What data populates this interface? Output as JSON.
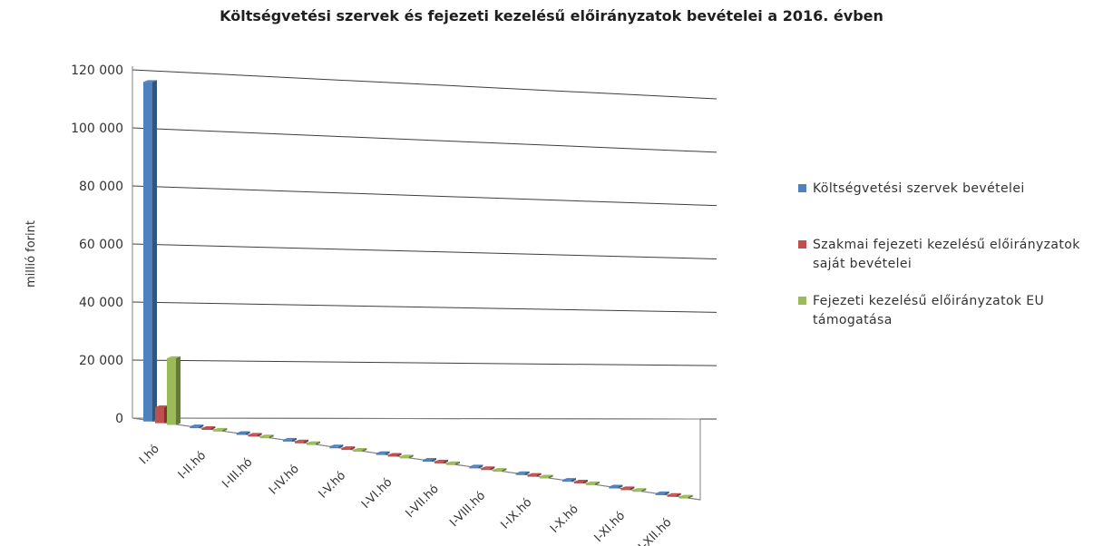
{
  "chart_data": {
    "type": "bar",
    "title": "Költségvetési szervek és fejezeti kezelésű előirányzatok bevételei a 2016. évben",
    "ylabel": "millió forint",
    "xlabel": "",
    "ylim": [
      0,
      120000
    ],
    "yticks": [
      "0",
      "20 000",
      "40 000",
      "60 000",
      "80 000",
      "100 000",
      "120 000"
    ],
    "ytick_values": [
      0,
      20000,
      40000,
      60000,
      80000,
      100000,
      120000
    ],
    "grid": true,
    "legend_position": "right",
    "categories": [
      "I.hó",
      "I-II.hó",
      "I-III.hó",
      "I-IV.hó",
      "I-V.hó",
      "I-VI.hó",
      "I-VII.hó",
      "I-VIII.hó",
      "I-IX.hó",
      "I-X.hó",
      "I-XI.hó",
      "I-XII.hó"
    ],
    "series": [
      {
        "name": "Költségvetési szervek bevételei",
        "color": "#4f81bd",
        "values": [
          117000,
          0,
          0,
          0,
          0,
          0,
          0,
          0,
          0,
          0,
          0,
          0
        ]
      },
      {
        "name": "Szakmai fejezeti kezelésű előirányzatok saját bevételei",
        "color": "#c0504d",
        "values": [
          5500,
          0,
          0,
          0,
          0,
          0,
          0,
          0,
          0,
          0,
          0,
          0
        ]
      },
      {
        "name": "Fejezeti kezelésű előirányzatok EU támogatása",
        "color": "#9bbb59",
        "values": [
          23000,
          0,
          0,
          0,
          0,
          0,
          0,
          0,
          0,
          0,
          0,
          0
        ]
      }
    ]
  }
}
